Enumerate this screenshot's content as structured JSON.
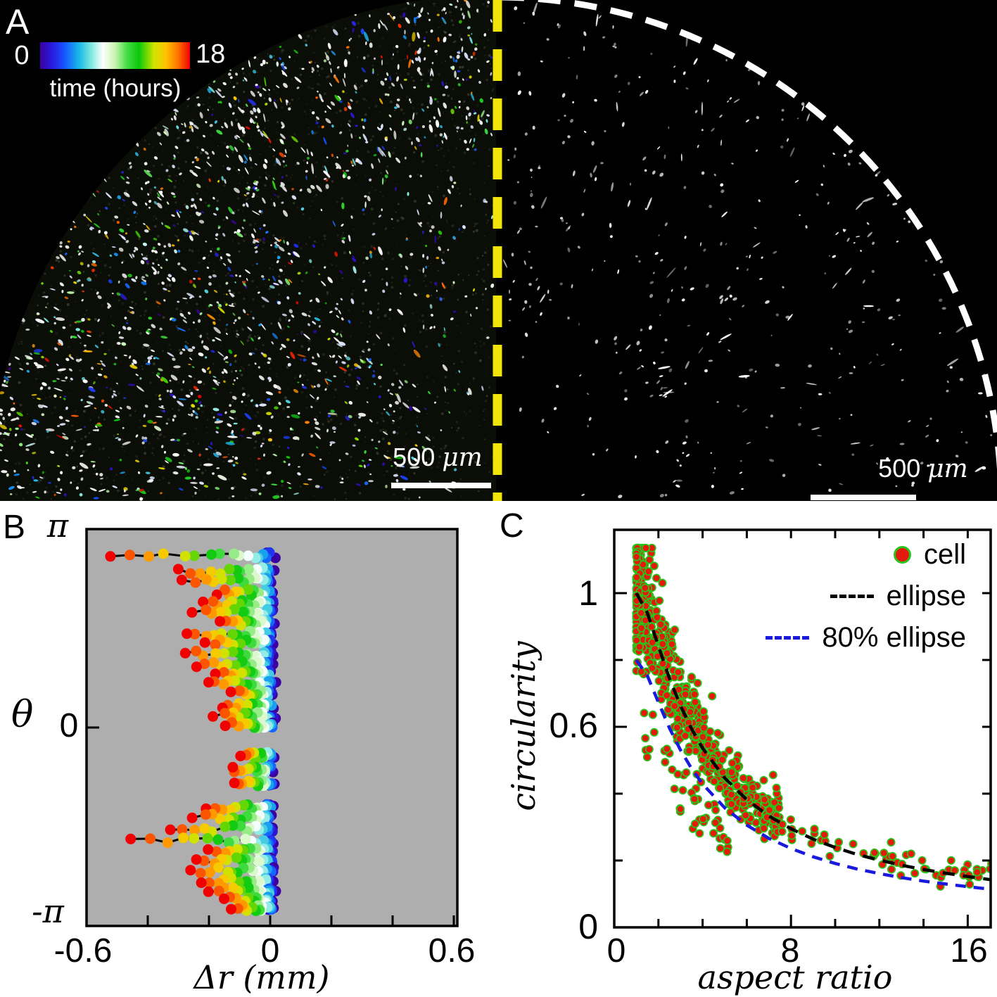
{
  "panel_a": {
    "label": "A",
    "background": "#000000",
    "colorbar": {
      "left_label": "0",
      "right_label": "18",
      "title": "time (hours)",
      "stops": [
        [
          0,
          "#3a00a0"
        ],
        [
          0.08,
          "#2a1ae0"
        ],
        [
          0.16,
          "#1553ff"
        ],
        [
          0.26,
          "#19b8e8"
        ],
        [
          0.34,
          "#7ee8e0"
        ],
        [
          0.42,
          "#ffffff"
        ],
        [
          0.5,
          "#c8f5b0"
        ],
        [
          0.58,
          "#44dc44"
        ],
        [
          0.66,
          "#0ac80a"
        ],
        [
          0.76,
          "#cfe400"
        ],
        [
          0.84,
          "#ffc400"
        ],
        [
          0.92,
          "#ff7300"
        ],
        [
          1,
          "#f00000"
        ]
      ]
    },
    "left_scalebar": {
      "value": "500",
      "unit": "μm"
    },
    "right_scalebar": {
      "value": "500",
      "unit": "μm"
    },
    "divider": {
      "color": "#f0e409",
      "style": "dashed-vertical"
    },
    "boundary_arc": {
      "color": "#ffffff",
      "style": "dashed"
    }
  },
  "panel_b": {
    "label": "B"
  },
  "panel_c": {
    "label": "C"
  },
  "chart_data": [
    {
      "panel": "B",
      "type": "scatter",
      "xlabel": "Δr (mm)",
      "ylabel": "θ",
      "xlim": [
        -0.6,
        0.6
      ],
      "ylim_units_of_pi": [
        -1,
        1
      ],
      "x_ticks": [
        -0.6,
        -0.4,
        -0.2,
        0,
        0.2,
        0.4,
        0.6
      ],
      "x_tick_labels": [
        "-0.6",
        "0",
        "0.6"
      ],
      "x_tick_label_values": [
        -0.6,
        0,
        0.6
      ],
      "y_tick_labels": [
        "π",
        "0",
        "-π"
      ],
      "y_tick_values_of_pi": [
        1,
        0,
        -1
      ],
      "plot_background": "#aeaeae",
      "point_coloring": "time 0-18 hours via colorbar colormap; red = 18 h at largest inward displacement, dark blue = 0 h near Δr = 0",
      "tracks_schema": [
        "theta_over_pi",
        "dr_end_mm"
      ],
      "tracks": [
        [
          0.87,
          -0.52
        ],
        [
          0.79,
          -0.3
        ],
        [
          0.74,
          -0.28
        ],
        [
          0.68,
          -0.17
        ],
        [
          0.63,
          -0.22
        ],
        [
          0.58,
          -0.25
        ],
        [
          0.53,
          -0.17
        ],
        [
          0.47,
          -0.28
        ],
        [
          0.43,
          -0.21
        ],
        [
          0.37,
          -0.28
        ],
        [
          0.32,
          -0.24
        ],
        [
          0.27,
          -0.17
        ],
        [
          0.22,
          -0.2
        ],
        [
          0.17,
          -0.12
        ],
        [
          0.11,
          -0.15
        ],
        [
          0.06,
          -0.18
        ],
        [
          0.01,
          -0.14
        ],
        [
          -0.14,
          -0.1
        ],
        [
          -0.21,
          -0.13
        ],
        [
          -0.28,
          -0.11
        ],
        [
          -0.4,
          -0.2
        ],
        [
          -0.45,
          -0.25
        ],
        [
          -0.51,
          -0.33
        ],
        [
          -0.57,
          -0.45
        ],
        [
          -0.62,
          -0.2
        ],
        [
          -0.67,
          -0.24
        ],
        [
          -0.72,
          -0.26
        ],
        [
          -0.77,
          -0.22
        ],
        [
          -0.82,
          -0.2
        ],
        [
          -0.87,
          -0.15
        ],
        [
          -0.91,
          -0.13
        ]
      ],
      "points_per_track": 18
    },
    {
      "panel": "C",
      "type": "scatter",
      "xlabel": "aspect ratio",
      "ylabel": "circularity",
      "xlim": [
        0,
        17.1
      ],
      "ylim": [
        0,
        1.19
      ],
      "x_ticks": [
        0,
        2,
        4,
        6,
        8,
        10,
        12,
        14,
        16
      ],
      "x_tick_labels": [
        "0",
        "8",
        "16"
      ],
      "x_tick_label_values": [
        0,
        8,
        16
      ],
      "y_ticks": [
        0,
        0.2,
        0.4,
        0.6,
        0.8,
        1.0
      ],
      "y_tick_labels": [
        "1",
        "0.6",
        "0"
      ],
      "y_tick_label_values": [
        1,
        0.6,
        0
      ],
      "legend": [
        {
          "label": "cell",
          "marker": "dot",
          "fill": "#e31a0c",
          "edge": "#29c41c"
        },
        {
          "label": "ellipse",
          "marker": "dashed-line",
          "color": "#000000"
        },
        {
          "label": "80% ellipse",
          "marker": "dashed-line",
          "color": "#1a1adf"
        }
      ],
      "ellipse_curve": {
        "aspect_ratio": [
          1,
          1.5,
          2,
          2.5,
          3,
          3.5,
          4,
          5,
          6,
          7,
          8,
          9,
          10,
          11,
          12,
          13,
          14,
          15,
          16,
          17
        ],
        "circularity": [
          1.0,
          0.941,
          0.841,
          0.745,
          0.663,
          0.594,
          0.536,
          0.447,
          0.382,
          0.333,
          0.295,
          0.264,
          0.239,
          0.218,
          0.201,
          0.186,
          0.173,
          0.162,
          0.152,
          0.143
        ]
      },
      "ellipse80_factor": 0.8,
      "cells_scatter": {
        "approx_n_points": 700,
        "aspect_ratio_range": [
          1,
          17
        ],
        "circularity_range": [
          0.14,
          1.13
        ],
        "description": "dense cluster at aspect ratio 1-4 with circularity 0.55-1.13, tapering along the ellipse curve to ~0.15 at aspect ratio 16; sparse outliers below the 80% ellipse curve"
      }
    }
  ]
}
